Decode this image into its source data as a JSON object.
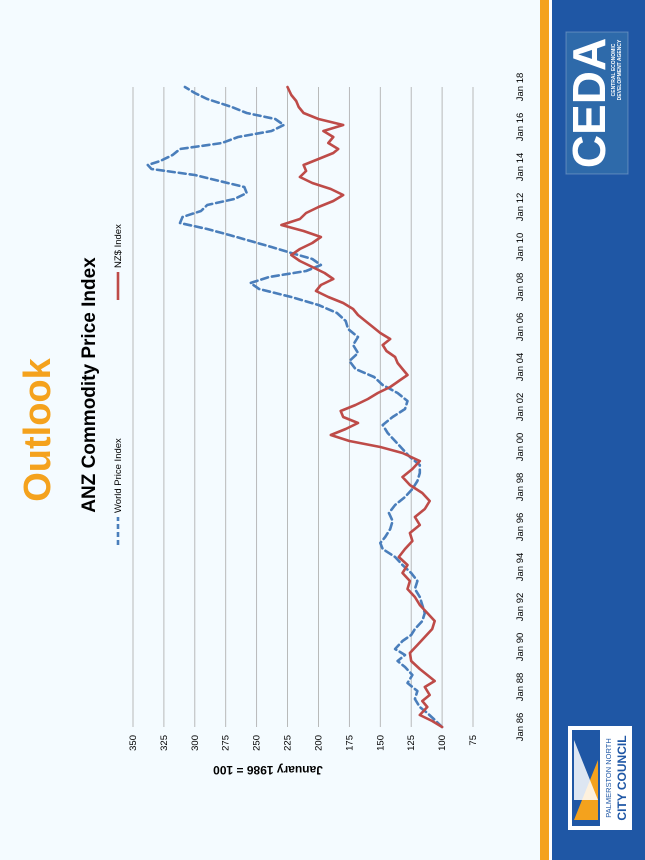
{
  "slide": {
    "heading": "Outlook",
    "colors": {
      "heading": "#f4a21d",
      "world_series": "#4a7ebb",
      "nzd_series": "#be4b48",
      "brand_blue": "#1f57a5",
      "brand_orange": "#f4a21d"
    }
  },
  "logos": {
    "ceda": {
      "name": "CEDA",
      "tagline_1": "CENTRAL ECONOMIC",
      "tagline_2": "DEVELOPMENT AGENCY"
    },
    "council": {
      "line_1": "PALMERSTON NORTH",
      "line_2": "CITY COUNCIL"
    }
  },
  "chart_data": {
    "type": "line",
    "title": "ANZ Commodity Price Index",
    "xlabel": "",
    "ylabel": "January 1986 = 100",
    "ylim": [
      75,
      350
    ],
    "yticks": [
      75,
      100,
      125,
      150,
      175,
      200,
      225,
      250,
      275,
      300,
      325,
      350
    ],
    "xlim": [
      1986,
      2018
    ],
    "xticks": [
      {
        "label": "Jan 86",
        "x": 1986
      },
      {
        "label": "Jan 88",
        "x": 1988
      },
      {
        "label": "Jan 90",
        "x": 1990
      },
      {
        "label": "Jan 92",
        "x": 1992
      },
      {
        "label": "Jan 94",
        "x": 1994
      },
      {
        "label": "Jan 96",
        "x": 1996
      },
      {
        "label": "Jan 98",
        "x": 1998
      },
      {
        "label": "Jan 00",
        "x": 2000
      },
      {
        "label": "Jan 02",
        "x": 2002
      },
      {
        "label": "Jan 04",
        "x": 2004
      },
      {
        "label": "Jan 06",
        "x": 2006
      },
      {
        "label": "Jan 08",
        "x": 2008
      },
      {
        "label": "Jan 10",
        "x": 2010
      },
      {
        "label": "Jan 12",
        "x": 2012
      },
      {
        "label": "Jan 14",
        "x": 2014
      },
      {
        "label": "Jan 16",
        "x": 2016
      },
      {
        "label": "Jan 18",
        "x": 2018
      }
    ],
    "grid": true,
    "legend_position": "top",
    "series": [
      {
        "name": "World Price Index",
        "style": "dashed",
        "points": [
          [
            1986.0,
            100
          ],
          [
            1986.3,
            105
          ],
          [
            1986.7,
            112
          ],
          [
            1987.0,
            118
          ],
          [
            1987.4,
            122
          ],
          [
            1987.8,
            120
          ],
          [
            1988.2,
            128
          ],
          [
            1988.6,
            124
          ],
          [
            1989.0,
            130
          ],
          [
            1989.3,
            136
          ],
          [
            1989.6,
            130
          ],
          [
            1989.9,
            138
          ],
          [
            1990.3,
            132
          ],
          [
            1990.6,
            125
          ],
          [
            1990.9,
            122
          ],
          [
            1991.3,
            116
          ],
          [
            1991.7,
            114
          ],
          [
            1992.1,
            116
          ],
          [
            1992.5,
            118
          ],
          [
            1992.9,
            122
          ],
          [
            1993.3,
            120
          ],
          [
            1993.7,
            125
          ],
          [
            1994.1,
            132
          ],
          [
            1994.5,
            138
          ],
          [
            1994.9,
            148
          ],
          [
            1995.2,
            150
          ],
          [
            1995.5,
            146
          ],
          [
            1995.9,
            142
          ],
          [
            1996.3,
            140
          ],
          [
            1996.7,
            143
          ],
          [
            1997.1,
            138
          ],
          [
            1997.5,
            130
          ],
          [
            1997.9,
            124
          ],
          [
            1998.3,
            120
          ],
          [
            1998.7,
            118
          ],
          [
            1999.1,
            118
          ],
          [
            1999.5,
            126
          ],
          [
            1999.9,
            132
          ],
          [
            2000.3,
            138
          ],
          [
            2000.7,
            144
          ],
          [
            2001.1,
            148
          ],
          [
            2001.5,
            140
          ],
          [
            2001.9,
            130
          ],
          [
            2002.3,
            128
          ],
          [
            2002.7,
            136
          ],
          [
            2003.1,
            148
          ],
          [
            2003.5,
            155
          ],
          [
            2003.9,
            170
          ],
          [
            2004.3,
            175
          ],
          [
            2004.7,
            168
          ],
          [
            2005.1,
            172
          ],
          [
            2005.5,
            168
          ],
          [
            2005.9,
            176
          ],
          [
            2006.3,
            178
          ],
          [
            2006.7,
            185
          ],
          [
            2007.1,
            200
          ],
          [
            2007.5,
            222
          ],
          [
            2007.9,
            248
          ],
          [
            2008.2,
            255
          ],
          [
            2008.5,
            240
          ],
          [
            2008.8,
            210
          ],
          [
            2009.1,
            198
          ],
          [
            2009.4,
            205
          ],
          [
            2009.7,
            222
          ],
          [
            2010.0,
            238
          ],
          [
            2010.3,
            255
          ],
          [
            2010.6,
            272
          ],
          [
            2010.9,
            290
          ],
          [
            2011.2,
            312
          ],
          [
            2011.5,
            310
          ],
          [
            2011.8,
            295
          ],
          [
            2012.1,
            290
          ],
          [
            2012.4,
            268
          ],
          [
            2012.7,
            258
          ],
          [
            2013.0,
            260
          ],
          [
            2013.3,
            280
          ],
          [
            2013.6,
            300
          ],
          [
            2013.9,
            335
          ],
          [
            2014.1,
            338
          ],
          [
            2014.3,
            328
          ],
          [
            2014.6,
            318
          ],
          [
            2014.9,
            312
          ],
          [
            2015.2,
            278
          ],
          [
            2015.5,
            265
          ],
          [
            2015.8,
            238
          ],
          [
            2016.1,
            228
          ],
          [
            2016.4,
            235
          ],
          [
            2016.7,
            258
          ],
          [
            2017.0,
            270
          ],
          [
            2017.4,
            290
          ],
          [
            2017.7,
            300
          ],
          [
            2018.0,
            308
          ]
        ]
      },
      {
        "name": "NZ$ Index",
        "style": "solid",
        "points": [
          [
            1986.0,
            100
          ],
          [
            1986.3,
            108
          ],
          [
            1986.6,
            118
          ],
          [
            1987.0,
            112
          ],
          [
            1987.3,
            116
          ],
          [
            1987.6,
            110
          ],
          [
            1988.0,
            114
          ],
          [
            1988.3,
            106
          ],
          [
            1988.6,
            112
          ],
          [
            1988.9,
            118
          ],
          [
            1989.3,
            125
          ],
          [
            1989.7,
            126
          ],
          [
            1990.1,
            120
          ],
          [
            1990.5,
            114
          ],
          [
            1990.9,
            108
          ],
          [
            1991.3,
            106
          ],
          [
            1991.7,
            112
          ],
          [
            1992.1,
            118
          ],
          [
            1992.5,
            122
          ],
          [
            1992.9,
            128
          ],
          [
            1993.3,
            126
          ],
          [
            1993.7,
            132
          ],
          [
            1994.1,
            128
          ],
          [
            1994.5,
            135
          ],
          [
            1994.9,
            130
          ],
          [
            1995.3,
            124
          ],
          [
            1995.7,
            126
          ],
          [
            1996.1,
            118
          ],
          [
            1996.5,
            122
          ],
          [
            1996.9,
            114
          ],
          [
            1997.3,
            110
          ],
          [
            1997.7,
            116
          ],
          [
            1998.1,
            126
          ],
          [
            1998.5,
            132
          ],
          [
            1998.9,
            124
          ],
          [
            1999.3,
            118
          ],
          [
            1999.7,
            132
          ],
          [
            2000.0,
            150
          ],
          [
            2000.3,
            175
          ],
          [
            2000.6,
            190
          ],
          [
            2000.9,
            178
          ],
          [
            2001.2,
            168
          ],
          [
            2001.5,
            180
          ],
          [
            2001.8,
            182
          ],
          [
            2002.1,
            170
          ],
          [
            2002.4,
            160
          ],
          [
            2002.7,
            152
          ],
          [
            2003.0,
            142
          ],
          [
            2003.3,
            135
          ],
          [
            2003.6,
            128
          ],
          [
            2003.9,
            132
          ],
          [
            2004.2,
            136
          ],
          [
            2004.5,
            138
          ],
          [
            2004.8,
            145
          ],
          [
            2005.1,
            148
          ],
          [
            2005.4,
            142
          ],
          [
            2005.7,
            150
          ],
          [
            2006.0,
            156
          ],
          [
            2006.3,
            162
          ],
          [
            2006.6,
            168
          ],
          [
            2006.9,
            172
          ],
          [
            2007.2,
            180
          ],
          [
            2007.5,
            192
          ],
          [
            2007.8,
            202
          ],
          [
            2008.1,
            198
          ],
          [
            2008.4,
            188
          ],
          [
            2008.7,
            195
          ],
          [
            2009.0,
            205
          ],
          [
            2009.3,
            215
          ],
          [
            2009.6,
            222
          ],
          [
            2009.9,
            215
          ],
          [
            2010.2,
            205
          ],
          [
            2010.5,
            198
          ],
          [
            2010.8,
            212
          ],
          [
            2011.1,
            230
          ],
          [
            2011.4,
            215
          ],
          [
            2011.7,
            210
          ],
          [
            2012.0,
            200
          ],
          [
            2012.3,
            188
          ],
          [
            2012.6,
            180
          ],
          [
            2012.9,
            190
          ],
          [
            2013.2,
            205
          ],
          [
            2013.5,
            215
          ],
          [
            2013.8,
            210
          ],
          [
            2014.1,
            212
          ],
          [
            2014.4,
            200
          ],
          [
            2014.7,
            188
          ],
          [
            2014.9,
            184
          ],
          [
            2015.2,
            192
          ],
          [
            2015.5,
            188
          ],
          [
            2015.8,
            196
          ],
          [
            2016.1,
            180
          ],
          [
            2016.4,
            200
          ],
          [
            2016.7,
            212
          ],
          [
            2017.0,
            216
          ],
          [
            2017.3,
            218
          ],
          [
            2017.6,
            222
          ],
          [
            2018.0,
            225
          ]
        ]
      }
    ]
  }
}
